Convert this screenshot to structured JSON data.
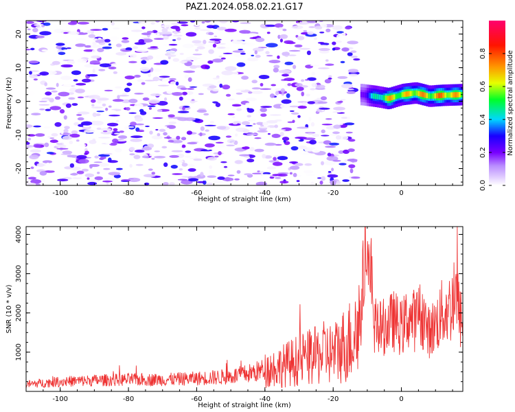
{
  "figure": {
    "title": "PAZ1.2024.058.02.21.G17"
  },
  "chart_data": [
    {
      "type": "heatmap",
      "title": "PAZ1.2024.058.02.21.G17",
      "xlabel": "Height of straight line (km)",
      "ylabel": "Frequency (Hz)",
      "xlim": [
        -110,
        18
      ],
      "ylim": [
        -25,
        24
      ],
      "x_ticks": [
        -100,
        -80,
        -60,
        -40,
        -20,
        0
      ],
      "y_ticks": [
        -20,
        -10,
        0,
        10,
        20
      ],
      "colorbar": {
        "label": "Normalized spectral amplitude",
        "range": [
          0,
          1
        ],
        "ticks": [
          0.0,
          0.2,
          0.4,
          0.6,
          0.8
        ],
        "colormap": "rainbow",
        "colors": [
          "#ffffff",
          "#cc99ff",
          "#7b00ff",
          "#0000ff",
          "#00ffff",
          "#00ff00",
          "#ffff00",
          "#ff8800",
          "#ff0000",
          "#ff0066"
        ]
      },
      "features": {
        "noise_region_x": [
          -110,
          -13
        ],
        "noise_amplitude_range": [
          0.0,
          0.2
        ],
        "ridge": {
          "x": [
            -12,
            -8,
            -4,
            0,
            4,
            8,
            12,
            18
          ],
          "frequency": [
            2,
            1.5,
            0.8,
            2,
            2.5,
            1.5,
            1.8,
            2
          ],
          "amplitude": [
            0.25,
            0.5,
            0.8,
            0.75,
            0.85,
            0.8,
            0.9,
            0.75
          ]
        }
      }
    },
    {
      "type": "line",
      "xlabel": "Height of straight line (km)",
      "ylabel": "SNR (10 * v/v)",
      "xlim": [
        -110,
        18
      ],
      "ylim": [
        0,
        4200
      ],
      "x_ticks": [
        -100,
        -80,
        -60,
        -40,
        -20,
        0
      ],
      "y_ticks": [
        1000,
        2000,
        3000,
        4000
      ],
      "series": [
        {
          "color": "#ee3333",
          "x": [
            -110,
            -100,
            -90,
            -80,
            -70,
            -60,
            -50,
            -45,
            -40,
            -35,
            -30,
            -25,
            -22,
            -20,
            -18,
            -15,
            -12,
            -10,
            -9,
            -8,
            -6,
            -4,
            -2,
            0,
            2,
            4,
            6,
            8,
            10,
            12,
            14,
            16,
            18
          ],
          "y": [
            180,
            250,
            280,
            300,
            300,
            330,
            380,
            450,
            550,
            650,
            800,
            900,
            1000,
            950,
            1100,
            1300,
            1800,
            4200,
            3000,
            1700,
            1600,
            1700,
            1800,
            1600,
            1900,
            1800,
            2000,
            1500,
            1700,
            2000,
            2100,
            2400,
            1600
          ]
        }
      ]
    }
  ]
}
